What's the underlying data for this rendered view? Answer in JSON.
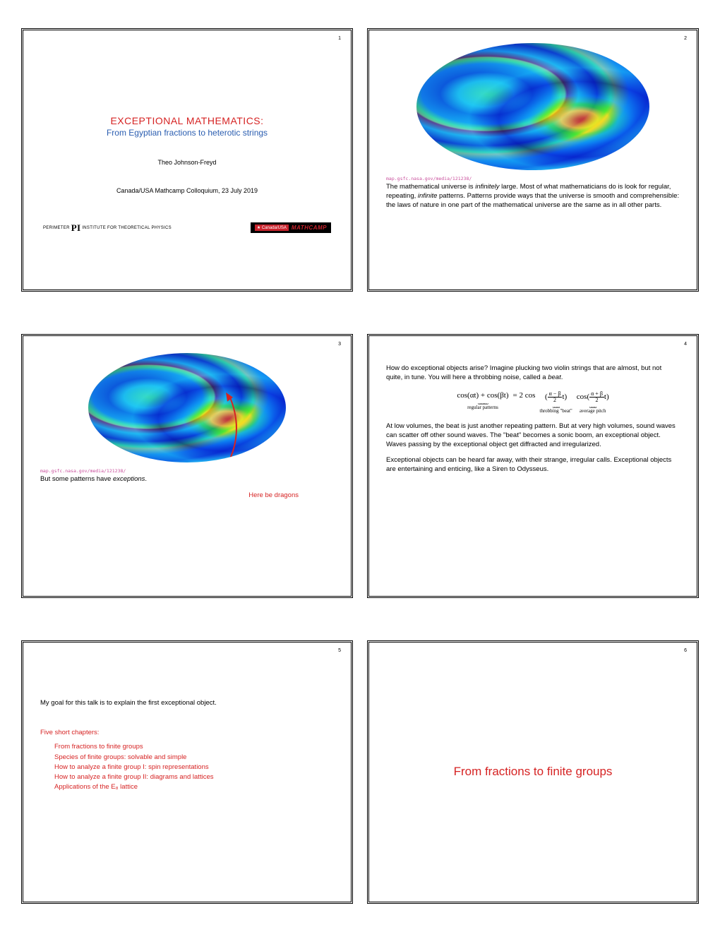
{
  "slides": {
    "s1": {
      "num": "1",
      "title_main": "EXCEPTIONAL MATHEMATICS:",
      "title_sub": "From Egyptian fractions to heterotic strings",
      "author": "Theo Johnson-Freyd",
      "venue": "Canada/USA Mathcamp Colloquium, 23 July 2019",
      "logo_pi_pre": "PERIMETER",
      "logo_pi_sym": "PI",
      "logo_pi_post": "INSTITUTE FOR THEORETICAL PHYSICS",
      "logo_mc_flag": "★ Canada/USA",
      "logo_mc_text": "MATHCAMP"
    },
    "s2": {
      "num": "2",
      "src": "map.gsfc.nasa.gov/media/121238/",
      "para": "The mathematical universe is <em>infinitely</em> large. Most of what mathematicians do is look for regular, repeating, <em>infinite</em> patterns. Patterns provide ways that the universe is smooth and comprehensible: the laws of nature in one part of the mathematical universe are the same as in all other parts."
    },
    "s3": {
      "num": "3",
      "src": "map.gsfc.nasa.gov/media/121238/",
      "line": "But some patterns have <em>exceptions</em>.",
      "dragons": "Here be dragons"
    },
    "s4": {
      "num": "4",
      "para1": "How do exceptional objects arise? Imagine plucking two violin strings that are almost, but not quite, in tune. You will here a throbbing noise, called a <em>beat</em>.",
      "eq": {
        "lhs": "cos(αt) + cos(βt)",
        "lbl_lhs": "regular patterns",
        "eq_sign": " = 2 cos",
        "frac1_num": "α − β",
        "frac1_den": "2",
        "t1": "t",
        "lbl_mid": "throbbing \"beat\"",
        "cos2": "cos",
        "frac2_num": "α + β",
        "frac2_den": "2",
        "t2": "t",
        "lbl_rhs": "average pitch"
      },
      "para2": "At low volumes, the beat is just another repeating pattern. But at very high volumes, sound waves can scatter off other sound waves. The \"beat\" becomes a sonic boom, an exceptional object. Waves passing by the exceptional object get diffracted and irregularized.",
      "para3": "Exceptional objects can be heard far away, with their strange, irregular calls. Exceptional objects are entertaining and enticing, like a Siren to Odysseus."
    },
    "s5": {
      "num": "5",
      "intro": "My goal for this talk is to explain the first exceptional object.",
      "head": "Five short chapters:",
      "chapters": [
        "From fractions to finite groups",
        "Species of finite groups: solvable and simple",
        "How to analyze a finite group I: spin representations",
        "How to analyze a finite group II: diagrams and lattices",
        "Applications of the E₈ lattice"
      ]
    },
    "s6": {
      "num": "6",
      "title": "From fractions to finite groups"
    }
  },
  "cmb_style": {
    "big_w": 330,
    "big_h": 180,
    "sm_w": 280,
    "sm_h": 155,
    "bg": "radial-gradient(ellipse at 30% 40%, #6fcf3f 0%, #3fb5d9 12%, #1e5fbf 20%, #2a8fd9 28%, #7fd94f 32%, #e8c23f 34%, #d9452f 35%, #3fa5d9 40%, #1e3f9f 48%, #5fc94f 54%, #e8b23f 56%, #2a7fd9 62%, #1e4fbf 70%, #4fb5d9 78%, #1e2f8f 88%, #2a5fbf 100%), radial-gradient(ellipse at 70% 60%, #d9652f 0%, #e8c23f 8%, #5fc94f 14%, #2a8fd9 22%, #1e3f9f 35%, #3f9fd9 48%, #1e2f7f 100%)",
    "blend": "overlay"
  },
  "colors": {
    "accent_red": "#d62323",
    "accent_blue": "#2a5db0",
    "link_pink": "#c94f9c"
  }
}
